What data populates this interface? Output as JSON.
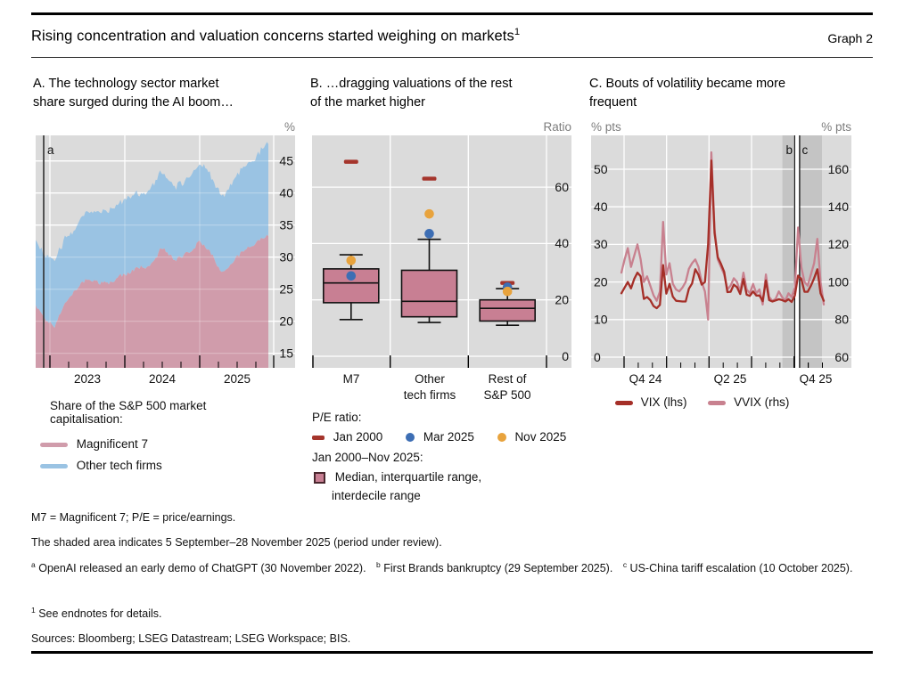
{
  "header": {
    "title": "Rising concentration and valuation concerns started weighing on markets",
    "title_sup": "1",
    "graph_label": "Graph 2"
  },
  "colors": {
    "plot_bg": "#dbdbdb",
    "shade": "#c4c4c4",
    "m7_pink": "#d09cab",
    "tech_blue": "#9ac3e3",
    "box_fill": "#c87f93",
    "jan2000_red": "#a5352c",
    "mar2025_blue": "#3d6eb4",
    "nov2025_orange": "#e8a33d",
    "vix_red": "#a52f28",
    "vvix_pink": "#c8818f",
    "gridline": "#ffffff",
    "event_line": "#2f2f2f"
  },
  "chart_data": [
    {
      "type": "area",
      "panel": "A",
      "title_lines": [
        "A. The technology sector market",
        "share surged during the AI boom…"
      ],
      "unit": "%",
      "stacked": true,
      "freq": "monthly",
      "start_month": "2022-10",
      "end_month": "2025-11",
      "series": [
        {
          "name": "Magnificent 7",
          "values": [
            22.5,
            21.0,
            19.8,
            19.2,
            21.5,
            23.5,
            24.5,
            25.5,
            26.5,
            26.5,
            26.0,
            26.0,
            26.0,
            27.0,
            27.2,
            27.5,
            28.5,
            28.5,
            28.5,
            29.5,
            31.5,
            30.5,
            29.5,
            30.0,
            30.5,
            31.0,
            32.5,
            31.5,
            30.5,
            28.5,
            27.5,
            29.0,
            30.0,
            31.0,
            31.5,
            32.0,
            33.0,
            33.5
          ]
        },
        {
          "name": "Other tech firms",
          "values": [
            9.8,
            10.0,
            10.0,
            10.3,
            10.0,
            10.0,
            9.5,
            10.0,
            10.5,
            11.0,
            11.0,
            11.0,
            11.5,
            11.5,
            11.8,
            12.0,
            11.5,
            11.5,
            12.0,
            12.0,
            12.0,
            11.5,
            11.5,
            11.5,
            11.5,
            12.0,
            12.0,
            12.5,
            12.0,
            12.0,
            12.0,
            12.5,
            12.5,
            13.0,
            13.0,
            13.5,
            14.0,
            14.5
          ]
        }
      ],
      "yticks": [
        15,
        20,
        25,
        30,
        35,
        40,
        45
      ],
      "ylim": [
        12.7,
        49.0
      ],
      "x_tick_labels": [
        "2023",
        "2024",
        "2025"
      ],
      "events": [
        {
          "label": "a",
          "date": "2022-11-30"
        }
      ],
      "legend_heading": [
        "Share of the S&P 500 market",
        "capitalisation:"
      ],
      "legend_items": [
        {
          "label": "Magnificent 7"
        },
        {
          "label": "Other tech firms"
        }
      ]
    },
    {
      "type": "box",
      "panel": "B",
      "title_lines": [
        "B. …dragging valuations of the rest",
        "of the market higher"
      ],
      "unit": "Ratio",
      "categories": [
        "M7",
        "Other tech firms",
        "Rest of S&P 500"
      ],
      "category_labels": [
        [
          "M7"
        ],
        [
          "Other",
          "tech firms"
        ],
        [
          "Rest of",
          "S&P 500"
        ]
      ],
      "boxes": [
        {
          "p10": 13.0,
          "q1": 19.0,
          "median": 26.0,
          "q3": 31.0,
          "p90": 36.0
        },
        {
          "p10": 12.0,
          "q1": 14.0,
          "median": 19.5,
          "q3": 30.5,
          "p90": 41.5
        },
        {
          "p10": 11.0,
          "q1": 12.5,
          "median": 17.0,
          "q3": 20.0,
          "p90": 24.0
        }
      ],
      "points": {
        "jan_2000": [
          69.0,
          63.0,
          26.0
        ],
        "mar_2025": [
          28.5,
          43.5,
          24.5
        ],
        "nov_2025": [
          34.0,
          50.5,
          23.0
        ]
      },
      "yticks": [
        0,
        20,
        40,
        60
      ],
      "ylim": [
        -3.2,
        78.4
      ],
      "legend": {
        "heading1": "P/E ratio:",
        "items": [
          {
            "label": "Jan 2000"
          },
          {
            "label": "Mar 2025"
          },
          {
            "label": "Nov 2025"
          }
        ],
        "heading2": "Jan 2000–Nov 2025:",
        "box_item_line1": "Median, interquartile range,",
        "box_item_line2": "interdecile range"
      }
    },
    {
      "type": "line",
      "panel": "C",
      "title_lines": [
        "C. Bouts of volatility became more",
        "frequent"
      ],
      "unit_left": "% pts",
      "unit_right": "% pts",
      "freq": "weekly",
      "x_start": "2024-09-27",
      "x_end": "2025-11-28",
      "series": [
        {
          "name": "VIX (lhs)",
          "axis": "left",
          "values": [
            17.0,
            18.5,
            20.0,
            18.3,
            20.8,
            22.5,
            21.5,
            15.5,
            16.0,
            15.2,
            13.6,
            13.0,
            13.9,
            24.5,
            16.9,
            19.5,
            16.1,
            15.0,
            14.9,
            14.8,
            14.8,
            18.2,
            19.6,
            23.4,
            21.9,
            19.3,
            20.0,
            30.0,
            52.3,
            33.0,
            26.6,
            24.8,
            22.7,
            17.3,
            17.4,
            19.3,
            18.6,
            16.8,
            20.8,
            16.6,
            16.3,
            17.5,
            16.4,
            16.4,
            14.9,
            20.4,
            15.2,
            14.8,
            15.1,
            15.4,
            15.2,
            14.8,
            15.4,
            14.7,
            16.4,
            21.7,
            20.8,
            17.4,
            17.4,
            19.0,
            21.0,
            23.4,
            17.0,
            15.0
          ]
        },
        {
          "name": "VVIX (rhs)",
          "axis": "right",
          "values": [
            105,
            112,
            118,
            108,
            114,
            120,
            112,
            100,
            103,
            98,
            93,
            90,
            95,
            132,
            104,
            110,
            99,
            96,
            95,
            97,
            100,
            107,
            110,
            112,
            108,
            100,
            95,
            80,
            169,
            128,
            112,
            108,
            104,
            96,
            98,
            102,
            100,
            95,
            105,
            96,
            94,
            99,
            94,
            96,
            88,
            104,
            92,
            90,
            91,
            95,
            92,
            90,
            94,
            92,
            97,
            129,
            108,
            100,
            98,
            104,
            110,
            123,
            100,
            88
          ]
        }
      ],
      "yticks_left": [
        0,
        10,
        20,
        30,
        40,
        50
      ],
      "ylim_left": [
        -3.5,
        57.7
      ],
      "yticks_right": [
        60,
        80,
        100,
        120,
        140,
        160
      ],
      "x_tick_labels": [
        "Q4 24",
        "Q2 25",
        "Q4 25"
      ],
      "shaded_period": "5 September–28 November 2025",
      "events": [
        {
          "label": "b",
          "date": "2025-09-29"
        },
        {
          "label": "c",
          "date": "2025-10-10"
        }
      ],
      "legend_items": [
        {
          "label": "VIX (lhs)"
        },
        {
          "label": "VVIX (rhs)"
        }
      ]
    }
  ],
  "footnotes": {
    "defs": "M7 = Magnificent 7; P/E = price/earnings.",
    "shaded": "The shaded area indicates 5 September–28 November 2025 (period under review).",
    "notes": [
      {
        "marker": "a",
        "text": "OpenAI released an early demo of ChatGPT (30 November 2022)."
      },
      {
        "marker": "b",
        "text": "First Brands bankruptcy (29 September 2025)."
      },
      {
        "marker": "c",
        "text": "US-China tariff escalation (10 October 2025)."
      }
    ],
    "endnote": {
      "marker": "1",
      "text": "See endnotes for details."
    },
    "sources": "Sources: Bloomberg; LSEG Datastream; LSEG Workspace; BIS."
  }
}
